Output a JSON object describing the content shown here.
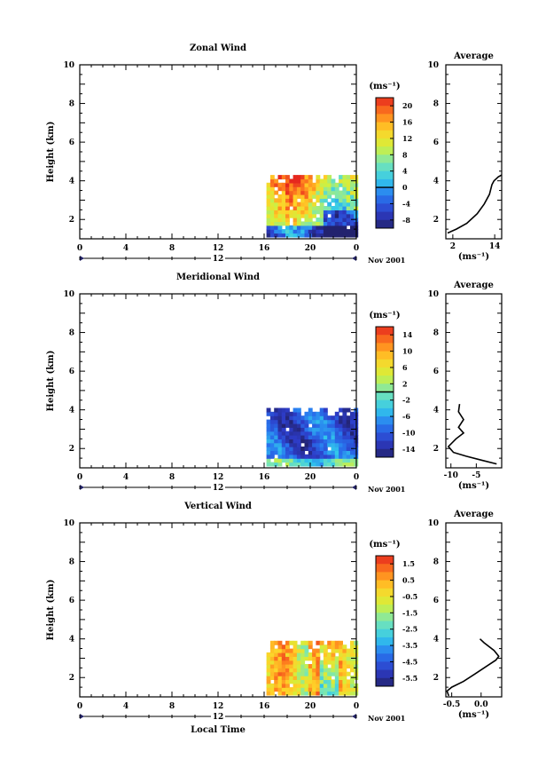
{
  "chart_data": [
    {
      "type": "heatmap",
      "title": "Zonal Wind",
      "ylabel": "Height (km)",
      "xlabel": "",
      "x_ticks": [
        "0",
        "4",
        "8",
        "12",
        "16",
        "20",
        "0"
      ],
      "y_ticks": [
        "2",
        "4",
        "6",
        "8",
        "10"
      ],
      "xlim": [
        0,
        24
      ],
      "ylim": [
        1,
        10
      ],
      "date_label": "Nov 2001",
      "day_label": "12",
      "colorbar": {
        "unit": "(ms⁻¹)",
        "ticks": [
          "20",
          "16",
          "12",
          "8",
          "4",
          "0",
          "-4",
          "-8"
        ],
        "range": [
          -10,
          22
        ],
        "zero_line": 0
      },
      "data_extent": {
        "x": [
          16.2,
          24
        ],
        "y": [
          1.1,
          4.3
        ]
      },
      "profile": {
        "title": "Average",
        "xlabel": "(ms⁻¹)",
        "x_ticks": [
          "2",
          "14"
        ],
        "xlim": [
          0,
          16
        ],
        "y_ticks": [
          "2",
          "4",
          "6",
          "8",
          "10"
        ],
        "ylim": [
          1,
          10
        ],
        "points": [
          [
            0.5,
            1.3
          ],
          [
            3,
            1.5
          ],
          [
            6,
            1.8
          ],
          [
            9,
            2.3
          ],
          [
            11,
            2.8
          ],
          [
            12.5,
            3.3
          ],
          [
            13.2,
            3.8
          ],
          [
            13.8,
            4.0
          ],
          [
            15,
            4.2
          ],
          [
            16,
            4.3
          ]
        ]
      },
      "description_cells": "dense",
      "color_theme": "positive-west-shear"
    },
    {
      "type": "heatmap",
      "title": "Meridional Wind",
      "ylabel": "Height (km)",
      "xlabel": "",
      "x_ticks": [
        "0",
        "4",
        "8",
        "12",
        "16",
        "20",
        "0"
      ],
      "y_ticks": [
        "2",
        "4",
        "6",
        "8",
        "10"
      ],
      "xlim": [
        0,
        24
      ],
      "ylim": [
        1,
        10
      ],
      "date_label": "Nov 2001",
      "day_label": "12",
      "colorbar": {
        "unit": "(ms⁻¹)",
        "ticks": [
          "14",
          "10",
          "6",
          "2",
          "-2",
          "-6",
          "-10",
          "-14"
        ],
        "range": [
          -16,
          16
        ],
        "zero_line": 0
      },
      "data_extent": {
        "x": [
          16.2,
          24
        ],
        "y": [
          1.1,
          4.1
        ]
      },
      "profile": {
        "title": "Average",
        "xlabel": "(ms⁻¹)",
        "x_ticks": [
          "-10",
          "-5"
        ],
        "xlim": [
          -11,
          0
        ],
        "y_ticks": [
          "2",
          "4",
          "6",
          "8",
          "10"
        ],
        "ylim": [
          1,
          10
        ],
        "points": [
          [
            -1,
            1.2
          ],
          [
            -4,
            1.4
          ],
          [
            -7,
            1.6
          ],
          [
            -9.5,
            1.8
          ],
          [
            -10.5,
            2.1
          ],
          [
            -9,
            2.5
          ],
          [
            -7.5,
            2.8
          ],
          [
            -8.5,
            3.1
          ],
          [
            -7.5,
            3.5
          ],
          [
            -8.5,
            3.9
          ],
          [
            -8.3,
            4.3
          ]
        ]
      },
      "color_theme": "negative-south"
    },
    {
      "type": "heatmap",
      "title": "Vertical Wind",
      "ylabel": "Height (km)",
      "xlabel": "Local Time",
      "x_ticks": [
        "0",
        "4",
        "8",
        "12",
        "16",
        "20",
        "0"
      ],
      "y_ticks": [
        "2",
        "4",
        "6",
        "8",
        "10"
      ],
      "xlim": [
        0,
        24
      ],
      "ylim": [
        1,
        10
      ],
      "date_label": "Nov 2001",
      "day_label": "12",
      "colorbar": {
        "unit": "(ms⁻¹)",
        "ticks": [
          "1.5",
          "0.5",
          "-0.5",
          "-1.5",
          "-2.5",
          "-3.5",
          "-4.5",
          "-5.5"
        ],
        "range": [
          -6,
          2
        ]
      },
      "data_extent": {
        "x": [
          16.2,
          24
        ],
        "y": [
          1.1,
          3.8
        ]
      },
      "profile": {
        "title": "Average",
        "xlabel": "(ms⁻¹)",
        "x_ticks": [
          "-0.5",
          "0.0"
        ],
        "xlim": [
          -0.6,
          0.35
        ],
        "y_ticks": [
          "2",
          "4",
          "6",
          "8",
          "10"
        ],
        "ylim": [
          1,
          10
        ],
        "points": [
          [
            -0.55,
            1.05
          ],
          [
            -0.58,
            1.3
          ],
          [
            -0.5,
            1.5
          ],
          [
            -0.3,
            1.8
          ],
          [
            -0.1,
            2.2
          ],
          [
            0.1,
            2.6
          ],
          [
            0.25,
            2.9
          ],
          [
            0.3,
            3.1
          ],
          [
            0.22,
            3.4
          ],
          [
            0.05,
            3.8
          ],
          [
            -0.02,
            4.0
          ]
        ]
      },
      "color_theme": "positive-updraft"
    }
  ]
}
